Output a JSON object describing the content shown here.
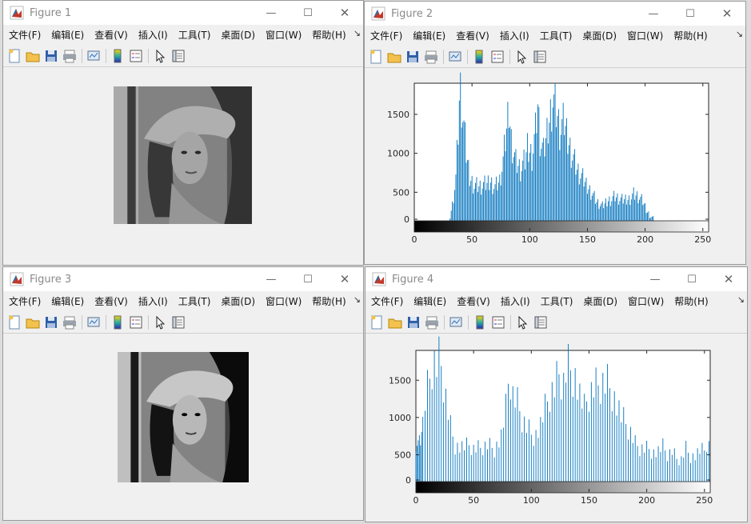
{
  "menus": [
    "文件(F)",
    "编辑(E)",
    "查看(V)",
    "插入(I)",
    "工具(T)",
    "桌面(D)",
    "窗口(W)",
    "帮助(H)"
  ],
  "more_glyph": "↘",
  "window_controls": {
    "minimize": "—",
    "maximize": "☐",
    "close": "✕"
  },
  "toolbar_icons": [
    "new-figure-icon",
    "open-icon",
    "save-icon",
    "print-icon",
    "link-plot-icon",
    "colorbar-icon",
    "legend-icon",
    "pointer-icon",
    "property-editor-icon"
  ],
  "colors": {
    "bar": "#0072BD",
    "window_bg": "#f0f0f0",
    "title_text": "#8a8a8a"
  },
  "figures": {
    "fig1": {
      "title": "Figure 1",
      "image": "grayscale Lena portrait (original)"
    },
    "fig2": {
      "title": "Figure 2",
      "yticks": [
        "0",
        "500",
        "1000",
        "1500"
      ],
      "xticks": [
        "0",
        "50",
        "100",
        "150",
        "200",
        "250"
      ]
    },
    "fig3": {
      "title": "Figure 3",
      "image": "grayscale Lena portrait (histogram equalized)"
    },
    "fig4": {
      "title": "Figure 4",
      "yticks": [
        "0",
        "500",
        "1000",
        "1500"
      ],
      "xticks": [
        "0",
        "50",
        "100",
        "150",
        "200",
        "250"
      ]
    }
  },
  "chart_data": [
    {
      "type": "bar",
      "title": "",
      "xlabel": "",
      "ylabel": "",
      "xlim": [
        0,
        255
      ],
      "ylim": [
        0,
        1900
      ],
      "x_axis_colorbar": "gray",
      "x": [
        [
          0,
          0
        ],
        [
          20,
          0
        ],
        [
          26,
          20
        ],
        [
          30,
          120
        ],
        [
          33,
          350
        ],
        [
          36,
          700
        ],
        [
          38,
          1300
        ],
        [
          39,
          1700
        ],
        [
          40,
          1820
        ],
        [
          42,
          1500
        ],
        [
          45,
          1000
        ],
        [
          48,
          700
        ],
        [
          52,
          600
        ],
        [
          57,
          580
        ],
        [
          62,
          600
        ],
        [
          66,
          650
        ],
        [
          70,
          580
        ],
        [
          74,
          650
        ],
        [
          77,
          900
        ],
        [
          80,
          1300
        ],
        [
          82,
          1600
        ],
        [
          84,
          1200
        ],
        [
          88,
          900
        ],
        [
          92,
          800
        ],
        [
          96,
          900
        ],
        [
          98,
          1100
        ],
        [
          102,
          1000
        ],
        [
          105,
          1300
        ],
        [
          107,
          1650
        ],
        [
          109,
          1200
        ],
        [
          112,
          1000
        ],
        [
          117,
          1450
        ],
        [
          120,
          1750
        ],
        [
          124,
          1500
        ],
        [
          126,
          1300
        ],
        [
          130,
          1400
        ],
        [
          133,
          1200
        ],
        [
          137,
          1000
        ],
        [
          141,
          800
        ],
        [
          145,
          700
        ],
        [
          149,
          600
        ],
        [
          154,
          500
        ],
        [
          158,
          380
        ],
        [
          163,
          320
        ],
        [
          168,
          400
        ],
        [
          174,
          450
        ],
        [
          180,
          400
        ],
        [
          186,
          420
        ],
        [
          190,
          480
        ],
        [
          194,
          450
        ],
        [
          198,
          380
        ],
        [
          202,
          250
        ],
        [
          206,
          180
        ],
        [
          210,
          120
        ],
        [
          214,
          60
        ],
        [
          220,
          20
        ],
        [
          226,
          5
        ],
        [
          235,
          0
        ],
        [
          255,
          0
        ]
      ]
    },
    {
      "type": "bar",
      "title": "",
      "xlabel": "",
      "ylabel": "",
      "xlim": [
        0,
        255
      ],
      "ylim": [
        0,
        1900
      ],
      "x_axis_colorbar": "gray",
      "x": [
        [
          0,
          700
        ],
        [
          3,
          650
        ],
        [
          6,
          900
        ],
        [
          9,
          1300
        ],
        [
          12,
          1500
        ],
        [
          15,
          1750
        ],
        [
          18,
          1700
        ],
        [
          21,
          1820
        ],
        [
          24,
          1500
        ],
        [
          27,
          1200
        ],
        [
          30,
          900
        ],
        [
          34,
          650
        ],
        [
          38,
          620
        ],
        [
          42,
          600
        ],
        [
          46,
          620
        ],
        [
          50,
          580
        ],
        [
          56,
          600
        ],
        [
          62,
          650
        ],
        [
          68,
          600
        ],
        [
          74,
          750
        ],
        [
          78,
          1100
        ],
        [
          81,
          1600
        ],
        [
          84,
          1300
        ],
        [
          88,
          1200
        ],
        [
          92,
          1000
        ],
        [
          96,
          900
        ],
        [
          100,
          800
        ],
        [
          104,
          800
        ],
        [
          108,
          900
        ],
        [
          112,
          1100
        ],
        [
          116,
          1300
        ],
        [
          120,
          1400
        ],
        [
          124,
          1600
        ],
        [
          128,
          1500
        ],
        [
          131,
          1750
        ],
        [
          134,
          1700
        ],
        [
          138,
          1600
        ],
        [
          142,
          1300
        ],
        [
          146,
          1100
        ],
        [
          150,
          1300
        ],
        [
          154,
          1400
        ],
        [
          158,
          1450
        ],
        [
          162,
          1500
        ],
        [
          166,
          1500
        ],
        [
          170,
          1400
        ],
        [
          174,
          1200
        ],
        [
          178,
          1000
        ],
        [
          182,
          900
        ],
        [
          186,
          800
        ],
        [
          190,
          650
        ],
        [
          194,
          600
        ],
        [
          198,
          600
        ],
        [
          202,
          600
        ],
        [
          206,
          550
        ],
        [
          210,
          550
        ],
        [
          214,
          600
        ],
        [
          218,
          500
        ],
        [
          222,
          550
        ],
        [
          226,
          450
        ],
        [
          230,
          450
        ],
        [
          234,
          600
        ],
        [
          238,
          500
        ],
        [
          242,
          500
        ],
        [
          246,
          550
        ],
        [
          250,
          550
        ],
        [
          253,
          700
        ],
        [
          255,
          550
        ]
      ]
    }
  ]
}
